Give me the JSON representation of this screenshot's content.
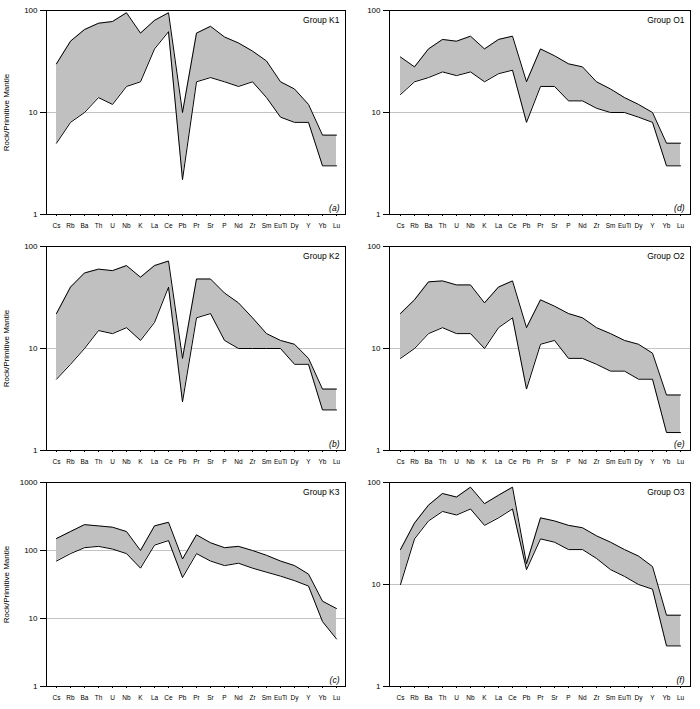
{
  "chart_data": [
    {
      "type": "area",
      "y_label": "Rock/Primitive Mantle",
      "annotations": [
        "Group K1",
        "(a)"
      ],
      "categories": [
        "Cs",
        "Rb",
        "Ba",
        "Th",
        "U",
        "Nb",
        "K",
        "La",
        "Ce",
        "Pb",
        "Pr",
        "Sr",
        "P",
        "Nd",
        "Zr",
        "Sm",
        "EuTi",
        "Dy",
        "Y",
        "Yb",
        "Lu"
      ],
      "upper": [
        30,
        50,
        65,
        75,
        78,
        95,
        60,
        80,
        95,
        10,
        60,
        70,
        55,
        48,
        40,
        32,
        20,
        17,
        12,
        6,
        6
      ],
      "lower": [
        5,
        8,
        10,
        14,
        12,
        18,
        20,
        42,
        62,
        2.2,
        20,
        22,
        20,
        18,
        20,
        14,
        9,
        8,
        8,
        3,
        3
      ],
      "color": "#c0c0c0",
      "log": "y",
      "ylim": [
        1,
        100
      ],
      "yticks": [
        1,
        10,
        100
      ],
      "grid": true
    },
    {
      "type": "area",
      "annotations": [
        "Group O1",
        "(d)"
      ],
      "categories": [
        "Cs",
        "Rb",
        "Ba",
        "Th",
        "U",
        "Nb",
        "K",
        "La",
        "Ce",
        "Pb",
        "Pr",
        "Sr",
        "P",
        "Nd",
        "Zr",
        "Sm",
        "EuTi",
        "Dy",
        "Y",
        "Yb",
        "Lu"
      ],
      "upper": [
        35,
        28,
        42,
        52,
        50,
        56,
        42,
        52,
        56,
        20,
        42,
        36,
        30,
        28,
        20,
        17,
        14,
        12,
        10,
        5,
        5
      ],
      "lower": [
        15,
        20,
        22,
        25,
        23,
        25,
        20,
        24,
        26,
        8,
        18,
        18,
        13,
        13,
        11,
        10,
        10,
        9,
        8,
        3,
        3
      ],
      "color": "#c0c0c0",
      "log": "y",
      "ylim": [
        1,
        100
      ],
      "yticks": [
        1,
        10,
        100
      ],
      "grid": true
    },
    {
      "type": "area",
      "y_label": "Rock/Primitive Mantle",
      "annotations": [
        "Group K2",
        "(b)"
      ],
      "categories": [
        "Cs",
        "Rb",
        "Ba",
        "Th",
        "U",
        "Nb",
        "K",
        "La",
        "Ce",
        "Pb",
        "Pr",
        "Sr",
        "P",
        "Nd",
        "Zr",
        "Sm",
        "EuTi",
        "Dy",
        "Y",
        "Yb",
        "Lu"
      ],
      "upper": [
        22,
        40,
        55,
        60,
        58,
        65,
        50,
        65,
        72,
        8,
        48,
        48,
        35,
        28,
        20,
        14,
        12,
        11,
        8,
        4,
        4
      ],
      "lower": [
        5,
        7,
        10,
        15,
        14,
        16,
        12,
        18,
        40,
        3,
        20,
        22,
        12,
        10,
        10,
        10,
        10,
        7,
        7,
        2.5,
        2.5
      ],
      "color": "#c0c0c0",
      "log": "y",
      "ylim": [
        1,
        100
      ],
      "yticks": [
        1,
        10,
        100
      ],
      "grid": true
    },
    {
      "type": "area",
      "annotations": [
        "Group O2",
        "(e)"
      ],
      "categories": [
        "Cs",
        "Rb",
        "Ba",
        "Th",
        "U",
        "Nb",
        "K",
        "La",
        "Ce",
        "Pb",
        "Pr",
        "Sr",
        "P",
        "Nd",
        "Zr",
        "Sm",
        "EuTi",
        "Dy",
        "Y",
        "Yb",
        "Lu"
      ],
      "upper": [
        22,
        30,
        45,
        46,
        42,
        42,
        28,
        40,
        46,
        16,
        30,
        26,
        22,
        20,
        16,
        14,
        12,
        11,
        9,
        3.5,
        3.5
      ],
      "lower": [
        8,
        10,
        14,
        16,
        14,
        14,
        10,
        16,
        20,
        4,
        11,
        12,
        8,
        8,
        7,
        6,
        6,
        5,
        5,
        1.5,
        1.5
      ],
      "color": "#c0c0c0",
      "log": "y",
      "ylim": [
        1,
        100
      ],
      "yticks": [
        1,
        10,
        100
      ],
      "grid": true
    },
    {
      "type": "area",
      "y_label": "Rock/Primitive Mantle",
      "annotations": [
        "Group K3",
        "(c)"
      ],
      "categories": [
        "Cs",
        "Rb",
        "Ba",
        "Th",
        "U",
        "Nb",
        "K",
        "La",
        "Ce",
        "Pb",
        "Pr",
        "Sr",
        "P",
        "Nd",
        "Zr",
        "Sm",
        "EuTi",
        "Dy",
        "Y",
        "Yb",
        "Lu"
      ],
      "upper": [
        150,
        190,
        240,
        230,
        220,
        190,
        100,
        230,
        260,
        75,
        170,
        130,
        110,
        115,
        100,
        85,
        70,
        60,
        45,
        18,
        14
      ],
      "lower": [
        70,
        90,
        110,
        115,
        105,
        90,
        55,
        120,
        140,
        40,
        90,
        70,
        60,
        65,
        55,
        48,
        42,
        36,
        30,
        9,
        5
      ],
      "color": "#c0c0c0",
      "log": "y",
      "ylim": [
        1,
        1000
      ],
      "yticks": [
        1,
        10,
        100,
        1000
      ],
      "grid": true
    },
    {
      "type": "area",
      "annotations": [
        "Group O3",
        "(f)"
      ],
      "categories": [
        "Cs",
        "Rb",
        "Ba",
        "Th",
        "U",
        "Nb",
        "K",
        "La",
        "Ce",
        "Pb",
        "Pr",
        "Sr",
        "P",
        "Nd",
        "Zr",
        "Sm",
        "EuTi",
        "Dy",
        "Y",
        "Yb",
        "Lu"
      ],
      "upper": [
        22,
        40,
        60,
        78,
        72,
        90,
        62,
        75,
        90,
        16,
        45,
        42,
        38,
        36,
        30,
        26,
        22,
        19,
        15,
        5,
        5
      ],
      "lower": [
        10,
        28,
        42,
        52,
        48,
        55,
        38,
        45,
        55,
        14,
        28,
        26,
        22,
        22,
        18,
        14,
        12,
        10,
        9,
        2.5,
        2.5
      ],
      "color": "#c0c0c0",
      "log": "y",
      "ylim": [
        1,
        100
      ],
      "yticks": [
        1,
        10,
        100
      ],
      "grid": true
    }
  ]
}
